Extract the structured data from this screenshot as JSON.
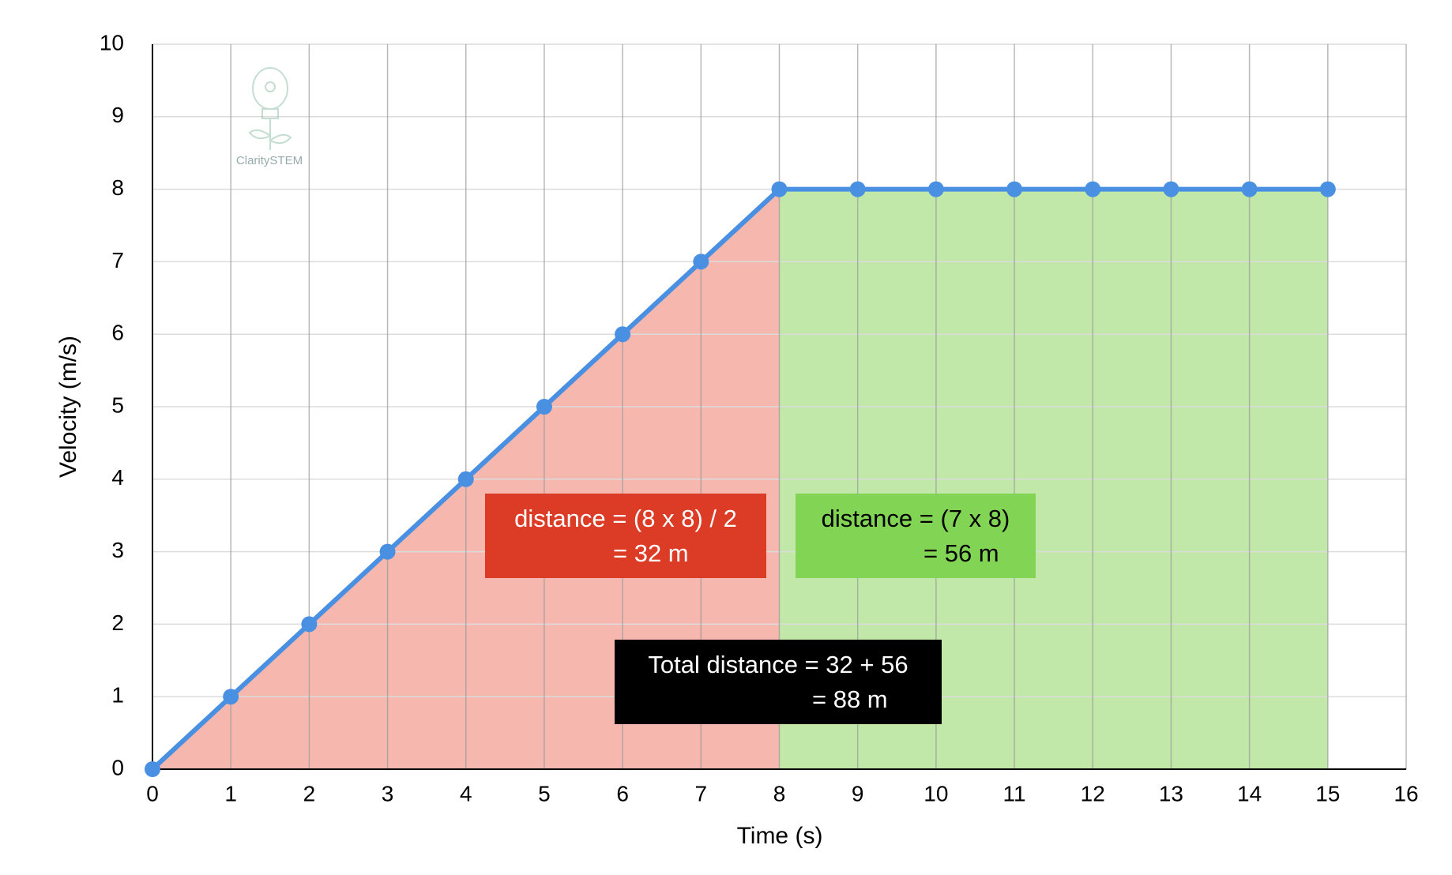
{
  "chart_data": {
    "type": "line",
    "x": [
      0,
      1,
      2,
      3,
      4,
      5,
      6,
      7,
      8,
      9,
      10,
      11,
      12,
      13,
      14,
      15
    ],
    "series": [
      {
        "color": "#4a90e2",
        "values": [
          0,
          1,
          2,
          3,
          4,
          5,
          6,
          7,
          8,
          8,
          8,
          8,
          8,
          8,
          8,
          8
        ]
      }
    ],
    "xlim": [
      0,
      16
    ],
    "xticks": [
      0,
      1,
      2,
      3,
      4,
      5,
      6,
      7,
      8,
      9,
      10,
      11,
      12,
      13,
      14,
      15,
      16
    ],
    "ylim": [
      0,
      10
    ],
    "yticks": [
      0,
      1,
      2,
      3,
      4,
      5,
      6,
      7,
      8,
      9,
      10
    ],
    "xlabel": "Time (s)",
    "ylabel": "Velocity (m/s)",
    "grid": true,
    "areas": [
      {
        "xrange": [
          0,
          8
        ],
        "color": "#f5b7ae"
      },
      {
        "xrange": [
          8,
          15
        ],
        "color": "#c1e8a8"
      }
    ],
    "annotations": [
      {
        "lines": [
          "distance = (8 x 8) / 2",
          "= 32 m"
        ],
        "color": "#dc3b26",
        "text_color": "#ffffff"
      },
      {
        "lines": [
          "distance = (7 x 8)",
          "= 56 m"
        ],
        "color": "#82d455",
        "text_color": "#000000"
      },
      {
        "lines": [
          "Total distance = 32 + 56",
          "= 88 m"
        ],
        "color": "#000000",
        "text_color": "#ffffff"
      }
    ],
    "watermark": "ClaritySTEM"
  }
}
